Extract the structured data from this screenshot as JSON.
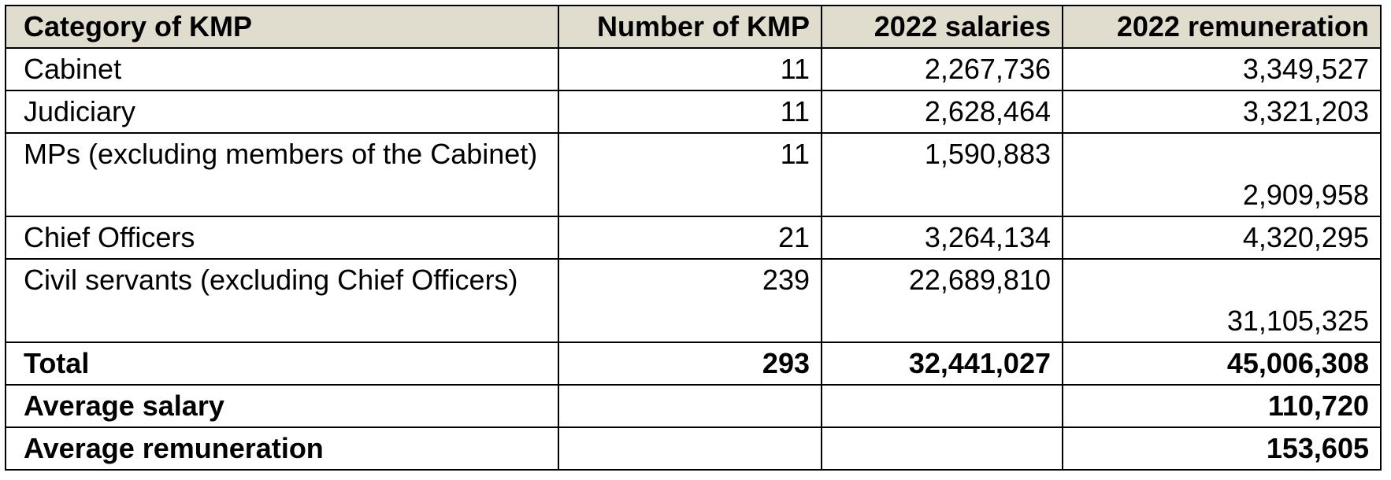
{
  "table": {
    "headers": [
      "Category of KMP",
      "Number of KMP",
      "2022 salaries",
      "2022 remuneration"
    ],
    "rows": [
      {
        "category": "Cabinet",
        "number": "11",
        "salaries": "2,267,736",
        "remuneration": "3,349,527"
      },
      {
        "category": "Judiciary",
        "number": "11",
        "salaries": "2,628,464",
        "remuneration": "3,321,203"
      },
      {
        "category": "MPs (excluding members of the Cabinet)",
        "number": "11",
        "salaries": "1,590,883",
        "remuneration": "2,909,958"
      },
      {
        "category": "Chief Officers",
        "number": "21",
        "salaries": "3,264,134",
        "remuneration": "4,320,295"
      },
      {
        "category": "Civil servants (excluding Chief Officers)",
        "number": "239",
        "salaries": "22,689,810",
        "remuneration": "31,105,325"
      }
    ],
    "total": {
      "label": "Total",
      "number": "293",
      "salaries": "32,441,027",
      "remuneration": "45,006,308"
    },
    "average_salary": {
      "label": "Average salary",
      "value": "110,720"
    },
    "average_remuneration": {
      "label": "Average remuneration",
      "value": "153,605"
    }
  }
}
